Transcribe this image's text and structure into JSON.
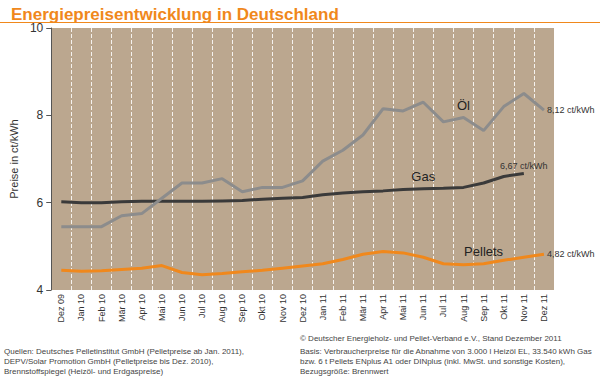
{
  "chart_data": {
    "type": "line",
    "title": "Energiepreisentwicklung in Deutschland",
    "ylabel": "Preise in ct/kWh",
    "categories": [
      "Dez 09",
      "Jan 10",
      "Feb 10",
      "Mär 10",
      "Apr 10",
      "Mai 10",
      "Jun 10",
      "Jul 10",
      "Aug 10",
      "Sep 10",
      "Okt 10",
      "Nov 10",
      "Dez 10",
      "Jan 11",
      "Feb 11",
      "Mär 11",
      "Apr 11",
      "Mai 11",
      "Jun 11",
      "Jul 11",
      "Aug 11",
      "Sep 11",
      "Okt 11",
      "Nov 11",
      "Dez 11"
    ],
    "series": [
      {
        "name": "Öl",
        "color": "#8c8c8c",
        "values": [
          5.45,
          5.45,
          5.45,
          5.7,
          5.75,
          6.1,
          6.45,
          6.45,
          6.55,
          6.25,
          6.35,
          6.35,
          6.5,
          6.95,
          7.2,
          7.55,
          8.15,
          8.1,
          8.3,
          7.85,
          7.95,
          7.65,
          8.2,
          8.5,
          8.12
        ],
        "value_labels": [
          null,
          null,
          null,
          null,
          null,
          null,
          null,
          null,
          null,
          null,
          null,
          null,
          null,
          null,
          null,
          null,
          null,
          null,
          null,
          null,
          null,
          null,
          null,
          null,
          "8,12 ct/kWh"
        ]
      },
      {
        "name": "Gas",
        "color": "#3a3a3a",
        "values": [
          6.02,
          6.0,
          6.0,
          6.02,
          6.03,
          6.03,
          6.03,
          6.03,
          6.04,
          6.05,
          6.08,
          6.1,
          6.12,
          6.18,
          6.22,
          6.25,
          6.27,
          6.3,
          6.32,
          6.33,
          6.35,
          6.45,
          6.6,
          6.67,
          null
        ],
        "value_labels": [
          null,
          null,
          null,
          null,
          null,
          null,
          null,
          null,
          null,
          null,
          null,
          null,
          null,
          null,
          null,
          null,
          null,
          null,
          null,
          null,
          null,
          null,
          null,
          "6,67 ct/kWh",
          null
        ]
      },
      {
        "name": "Pellets",
        "color": "#f0881c",
        "values": [
          4.45,
          4.43,
          4.44,
          4.47,
          4.5,
          4.56,
          4.4,
          4.35,
          4.38,
          4.42,
          4.45,
          4.5,
          4.55,
          4.6,
          4.7,
          4.82,
          4.88,
          4.85,
          4.75,
          4.6,
          4.58,
          4.6,
          4.68,
          4.75,
          4.82
        ],
        "value_labels": [
          null,
          null,
          null,
          null,
          null,
          null,
          null,
          null,
          null,
          null,
          null,
          null,
          null,
          null,
          null,
          null,
          null,
          null,
          null,
          null,
          null,
          null,
          null,
          null,
          "4,82 ct/kWh"
        ]
      }
    ],
    "ylim": [
      4,
      10
    ],
    "yticks": [
      4,
      6,
      8,
      10
    ],
    "grid": true,
    "annotations": [
      "© Deutscher Energieholz- und Pellet-Verband e.V., Stand Dezember 2011",
      "Quellen: Deutsches Pelletinstitut GmbH (Pelletpreise ab Jan. 2011),\nDEPV/Solar Promotion GmbH (Pelletpreise bis Dez. 2010),\nBrennstoffspiegel (Heizöl- und Erdgaspreise)",
      "Basis: Verbraucherpreise für die Abnahme von 3.000 l Heizöl EL, 33.540 kWh Gas\nbzw. 6 t Pellets ENplus A1 oder DINplus (inkl. MwSt. und sonstige Kosten),\nBezugsgröße: Brennwert"
    ]
  }
}
